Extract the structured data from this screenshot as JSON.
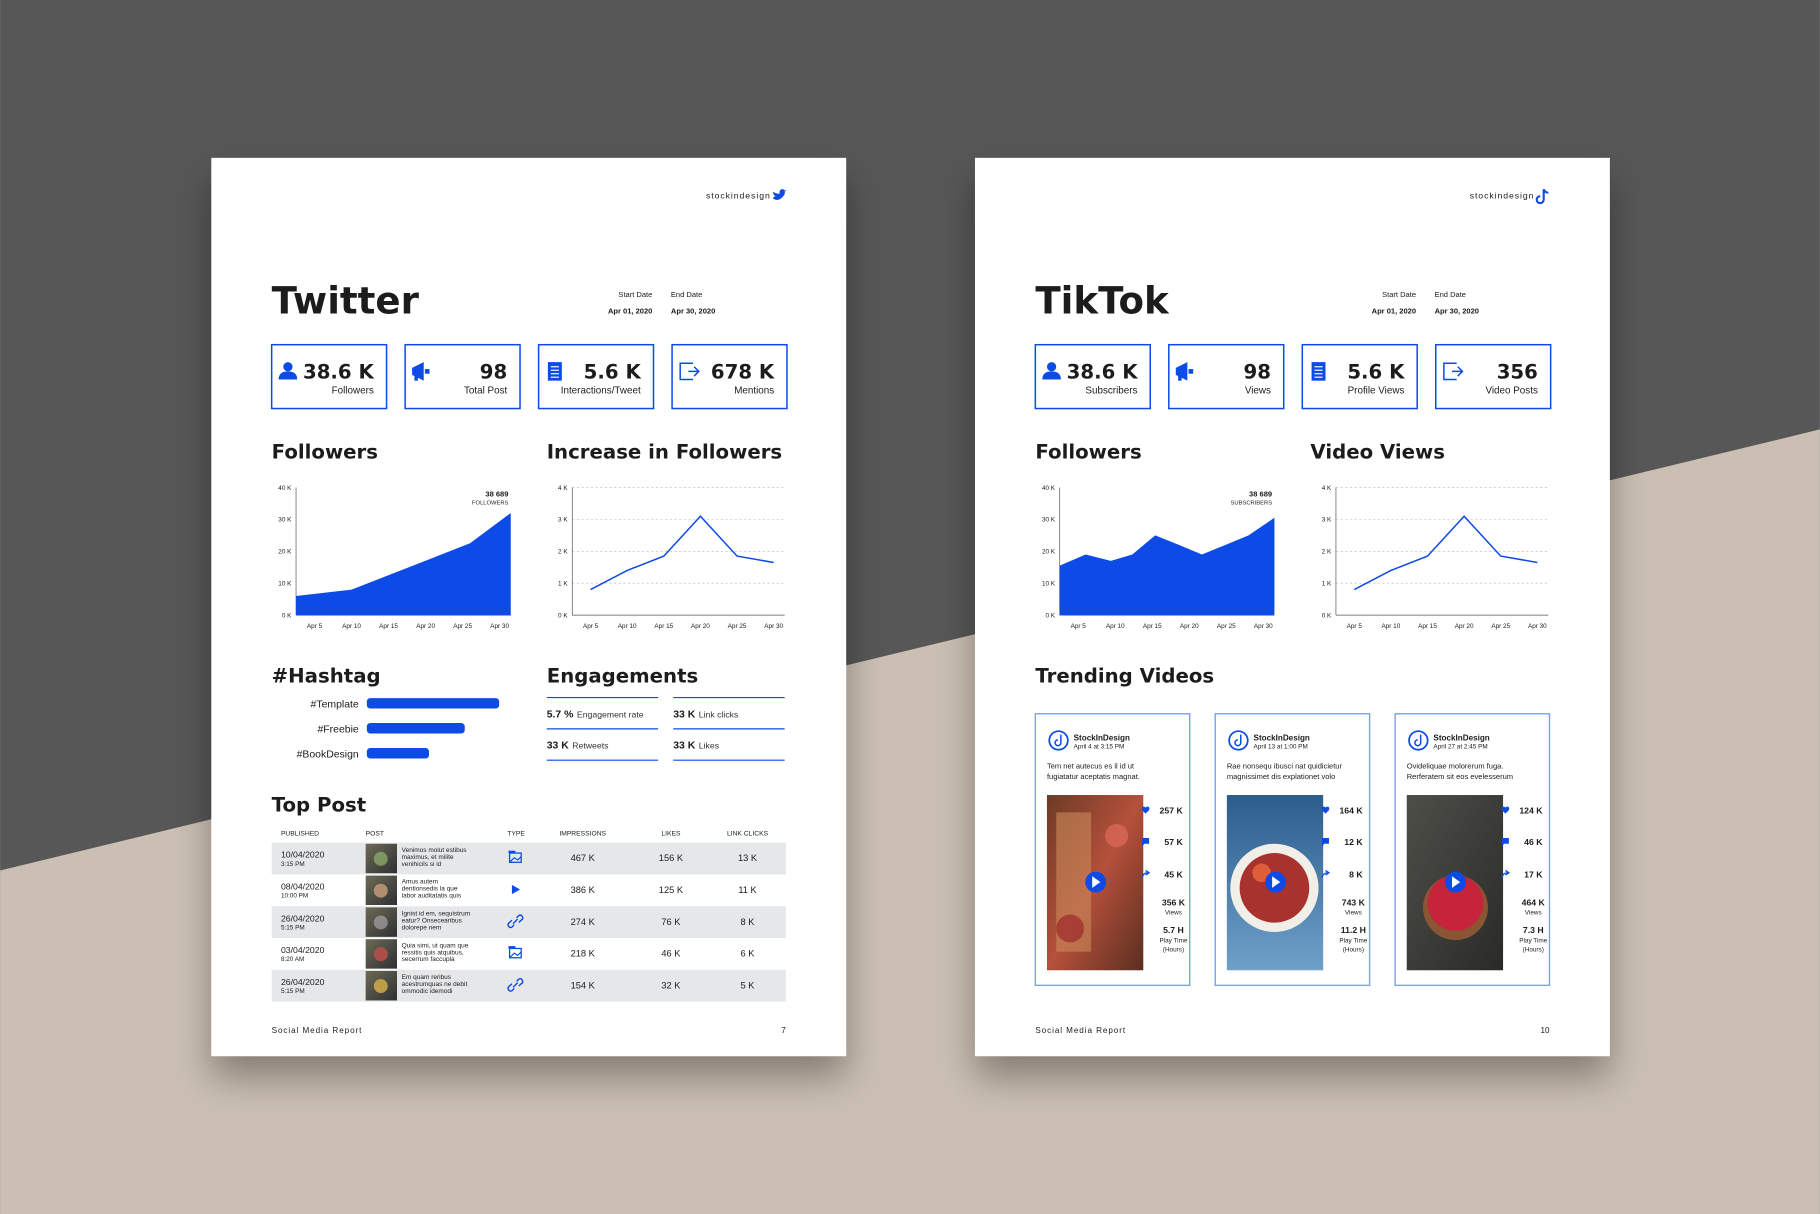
{
  "pages": [
    {
      "brand": "stockindesign",
      "title": "Twitter",
      "start_label": "Start Date",
      "start_date": "Apr 01, 2020",
      "end_label": "End Date",
      "end_date": "Apr 30, 2020",
      "stats": [
        {
          "value": "38.6 K",
          "label": "Followers"
        },
        {
          "value": "98",
          "label": "Total Post"
        },
        {
          "value": "5.6 K",
          "label": "Interactions/Tweet"
        },
        {
          "value": "678 K",
          "label": "Mentions"
        }
      ],
      "engagements_title": "Engagements",
      "engagements": [
        {
          "value": "5.7 %",
          "label": "Engagement rate"
        },
        {
          "value": "33 K",
          "label": "Link clicks"
        },
        {
          "value": "33 K",
          "label": "Retweets"
        },
        {
          "value": "33 K",
          "label": "Likes"
        }
      ],
      "table_title": "Top Post",
      "table": {
        "headers": [
          "PUBLISHED",
          "POST",
          "TYPE",
          "IMPRESSIONS",
          "LIKES",
          "LINK CLICKS"
        ],
        "rows": [
          {
            "date": "10/04/2020",
            "time": "3:15 PM",
            "post": [
              "Venimos molut estibus",
              "maximus, et milite",
              "venihicils si id"
            ],
            "impressions": "467 K",
            "likes": "156 K",
            "clicks": "13 K"
          },
          {
            "date": "08/04/2020",
            "time": "10:00 PM",
            "post": [
              "Amus autem",
              "dentionsedis la que",
              "labor auditatatis quis"
            ],
            "impressions": "386 K",
            "likes": "125 K",
            "clicks": "11 K"
          },
          {
            "date": "26/04/2020",
            "time": "5:15 PM",
            "post": [
              "Ignist id em, sequistrum",
              "eatur? Onsecearibus",
              "dolorepe nem"
            ],
            "impressions": "274 K",
            "likes": "76 K",
            "clicks": "8 K"
          },
          {
            "date": "03/04/2020",
            "time": "8:20 AM",
            "post": [
              "Quia simi, ut quam que",
              "ressitis quis atquibus,",
              "secerrum faccupla"
            ],
            "impressions": "218 K",
            "likes": "46 K",
            "clicks": "6 K"
          },
          {
            "date": "26/04/2020",
            "time": "5:15 PM",
            "post": [
              "Em quam reribus",
              "acestrumquas ne debit",
              "ommodic idemodi"
            ],
            "impressions": "154 K",
            "likes": "32 K",
            "clicks": "5 K"
          }
        ]
      },
      "footer": "Social Media Report",
      "page_number": "7"
    },
    {
      "brand": "stockindesign",
      "title": "TikTok",
      "start_label": "Start Date",
      "start_date": "Apr 01, 2020",
      "end_label": "End Date",
      "end_date": "Apr 30, 2020",
      "stats": [
        {
          "value": "38.6 K",
          "label": "Subscribers"
        },
        {
          "value": "98",
          "label": "Views"
        },
        {
          "value": "5.6 K",
          "label": "Profile Views"
        },
        {
          "value": "356",
          "label": "Video Posts"
        }
      ],
      "videos_title": "Trending Videos",
      "videos": [
        {
          "account": "StockInDesign",
          "date": "April 4 at 3:15 PM",
          "caption": [
            "Tem net autecus es il id ut",
            "fugiatatur aceptatis magnat."
          ],
          "likes": "257 K",
          "comments": "57 K",
          "shares": "45 K",
          "views": "356 K",
          "views_label": "Views",
          "play_time": "5.7 H",
          "play_label": "Play Time",
          "play_unit": "(Hours)"
        },
        {
          "account": "StockInDesign",
          "date": "April 13 at 1:00 PM",
          "caption": [
            "Rae nonsequ ibusci nat quidicietur",
            "magnissimet dis explationet volo"
          ],
          "likes": "164 K",
          "comments": "12 K",
          "shares": "8 K",
          "views": "743 K",
          "views_label": "Views",
          "play_time": "11.2 H",
          "play_label": "Play Time",
          "play_unit": "(Hours)"
        },
        {
          "account": "StockInDesign",
          "date": "April 27 at 2:45 PM",
          "caption": [
            "Ovideliquae molorerum fuga.",
            "Rerferatem sit eos evelesserum"
          ],
          "likes": "124 K",
          "comments": "46 K",
          "shares": "17 K",
          "views": "464 K",
          "views_label": "Views",
          "play_time": "7.3 H",
          "play_label": "Play Time",
          "play_unit": "(Hours)"
        }
      ],
      "footer": "Social Media Report",
      "page_number": "10"
    }
  ],
  "chart_data": [
    {
      "type": "area",
      "title": "Followers",
      "x": [
        2.5,
        10,
        20.5,
        26,
        31.5
      ],
      "values": [
        6,
        8,
        17.5,
        22.5,
        32
      ],
      "xlim": [
        2.5,
        31.5
      ],
      "xticks": [
        {
          "value": 5,
          "label": "Apr 5"
        },
        {
          "value": 10,
          "label": "Apr 10"
        },
        {
          "value": 15,
          "label": "Apr 15"
        },
        {
          "value": 20,
          "label": "Apr 20"
        },
        {
          "value": 25,
          "label": "Apr 25"
        },
        {
          "value": 30,
          "label": "Apr 30"
        }
      ],
      "ylim": [
        0,
        40
      ],
      "yticks": [
        {
          "value": 0,
          "label": "0 K"
        },
        {
          "value": 10,
          "label": "10 K"
        },
        {
          "value": 20,
          "label": "20 K"
        },
        {
          "value": 30,
          "label": "30 K"
        },
        {
          "value": 40,
          "label": "40 K"
        }
      ],
      "grid": false,
      "color": "#0d4be6",
      "annotation": {
        "value": "38 689",
        "label": "FOLLOWERS"
      }
    },
    {
      "type": "line",
      "title": "Increase in Followers",
      "x": [
        5,
        10,
        15,
        20,
        25,
        30
      ],
      "values": [
        0.8,
        1.4,
        1.85,
        3.1,
        1.85,
        1.65
      ],
      "xlim": [
        2.5,
        31.5
      ],
      "xticks": [
        {
          "value": 5,
          "label": "Apr 5"
        },
        {
          "value": 10,
          "label": "Apr 10"
        },
        {
          "value": 15,
          "label": "Apr 15"
        },
        {
          "value": 20,
          "label": "Apr 20"
        },
        {
          "value": 25,
          "label": "Apr 25"
        },
        {
          "value": 30,
          "label": "Apr 30"
        }
      ],
      "ylim": [
        0,
        4
      ],
      "yticks": [
        {
          "value": 0,
          "label": "0 K"
        },
        {
          "value": 1,
          "label": "1 K"
        },
        {
          "value": 2,
          "label": "2 K"
        },
        {
          "value": 3,
          "label": "3 K"
        },
        {
          "value": 4,
          "label": "4 K"
        }
      ],
      "grid": true,
      "color": "#0d4be6"
    },
    {
      "type": "bar",
      "title": "#Hashtag",
      "categories": [
        "#Template",
        "#Freebie",
        "#BookDesign"
      ],
      "values": [
        100,
        74,
        47
      ],
      "xlim": [
        0,
        100
      ],
      "color": "#0d4be6"
    },
    {
      "type": "area",
      "title": "Followers",
      "x": [
        2.5,
        6,
        9.4,
        12.3,
        15.4,
        18.6,
        21.7,
        24.9,
        28,
        31.5
      ],
      "values": [
        15.5,
        19,
        17,
        19,
        25,
        22,
        19,
        22,
        25,
        30.5
      ],
      "xlim": [
        2.5,
        31.5
      ],
      "xticks": [
        {
          "value": 5,
          "label": "Apr 5"
        },
        {
          "value": 10,
          "label": "Apr 10"
        },
        {
          "value": 15,
          "label": "Apr 15"
        },
        {
          "value": 20,
          "label": "Apr 20"
        },
        {
          "value": 25,
          "label": "Apr 25"
        },
        {
          "value": 30,
          "label": "Apr 30"
        }
      ],
      "ylim": [
        0,
        40
      ],
      "yticks": [
        {
          "value": 0,
          "label": "0 K"
        },
        {
          "value": 10,
          "label": "10 K"
        },
        {
          "value": 20,
          "label": "20 K"
        },
        {
          "value": 30,
          "label": "30 K"
        },
        {
          "value": 40,
          "label": "40 K"
        }
      ],
      "grid": false,
      "color": "#0d4be6",
      "annotation": {
        "value": "38 689",
        "label": "SUBSCRIBERS"
      }
    },
    {
      "type": "line",
      "title": "Video Views",
      "x": [
        5,
        10,
        15,
        20,
        25,
        30
      ],
      "values": [
        0.8,
        1.4,
        1.85,
        3.1,
        1.85,
        1.65
      ],
      "xlim": [
        2.5,
        31.5
      ],
      "xticks": [
        {
          "value": 5,
          "label": "Apr 5"
        },
        {
          "value": 10,
          "label": "Apr 10"
        },
        {
          "value": 15,
          "label": "Apr 15"
        },
        {
          "value": 20,
          "label": "Apr 20"
        },
        {
          "value": 25,
          "label": "Apr 25"
        },
        {
          "value": 30,
          "label": "Apr 30"
        }
      ],
      "ylim": [
        0,
        4
      ],
      "yticks": [
        {
          "value": 0,
          "label": "0 K"
        },
        {
          "value": 1,
          "label": "1 K"
        },
        {
          "value": 2,
          "label": "2 K"
        },
        {
          "value": 3,
          "label": "3 K"
        },
        {
          "value": 4,
          "label": "4 K"
        }
      ],
      "grid": true,
      "color": "#0d4be6"
    }
  ]
}
